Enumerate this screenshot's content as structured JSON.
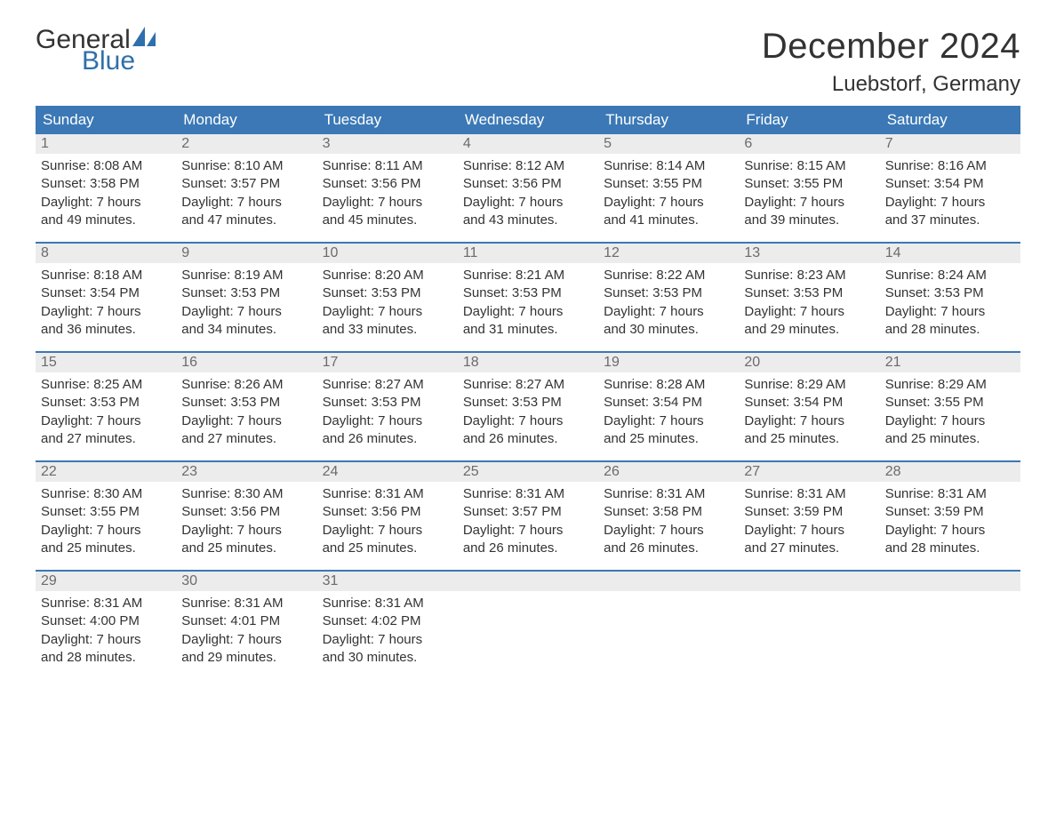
{
  "brand": {
    "part1": "General",
    "part2": "Blue",
    "color1": "#333333",
    "color2": "#2f6fab"
  },
  "title": "December 2024",
  "location": "Luebstorf, Germany",
  "colors": {
    "header_bg": "#3b78b5",
    "header_text": "#ffffff",
    "daynum_bg": "#ececec",
    "daynum_text": "#6b6b6b",
    "body_text": "#333333",
    "week_border": "#3b78b5",
    "page_bg": "#ffffff"
  },
  "fonts": {
    "title_size": 40,
    "location_size": 24,
    "weekday_size": 17,
    "cell_size": 15
  },
  "weekdays": [
    "Sunday",
    "Monday",
    "Tuesday",
    "Wednesday",
    "Thursday",
    "Friday",
    "Saturday"
  ],
  "labels": {
    "sunrise": "Sunrise:",
    "sunset": "Sunset:",
    "daylight_prefix": "Daylight:",
    "hours_word": "hours",
    "and_word": "and",
    "minutes_word": "minutes."
  },
  "weeks": [
    [
      {
        "n": "1",
        "sunrise": "8:08 AM",
        "sunset": "3:58 PM",
        "dh": "7",
        "dm": "49"
      },
      {
        "n": "2",
        "sunrise": "8:10 AM",
        "sunset": "3:57 PM",
        "dh": "7",
        "dm": "47"
      },
      {
        "n": "3",
        "sunrise": "8:11 AM",
        "sunset": "3:56 PM",
        "dh": "7",
        "dm": "45"
      },
      {
        "n": "4",
        "sunrise": "8:12 AM",
        "sunset": "3:56 PM",
        "dh": "7",
        "dm": "43"
      },
      {
        "n": "5",
        "sunrise": "8:14 AM",
        "sunset": "3:55 PM",
        "dh": "7",
        "dm": "41"
      },
      {
        "n": "6",
        "sunrise": "8:15 AM",
        "sunset": "3:55 PM",
        "dh": "7",
        "dm": "39"
      },
      {
        "n": "7",
        "sunrise": "8:16 AM",
        "sunset": "3:54 PM",
        "dh": "7",
        "dm": "37"
      }
    ],
    [
      {
        "n": "8",
        "sunrise": "8:18 AM",
        "sunset": "3:54 PM",
        "dh": "7",
        "dm": "36"
      },
      {
        "n": "9",
        "sunrise": "8:19 AM",
        "sunset": "3:53 PM",
        "dh": "7",
        "dm": "34"
      },
      {
        "n": "10",
        "sunrise": "8:20 AM",
        "sunset": "3:53 PM",
        "dh": "7",
        "dm": "33"
      },
      {
        "n": "11",
        "sunrise": "8:21 AM",
        "sunset": "3:53 PM",
        "dh": "7",
        "dm": "31"
      },
      {
        "n": "12",
        "sunrise": "8:22 AM",
        "sunset": "3:53 PM",
        "dh": "7",
        "dm": "30"
      },
      {
        "n": "13",
        "sunrise": "8:23 AM",
        "sunset": "3:53 PM",
        "dh": "7",
        "dm": "29"
      },
      {
        "n": "14",
        "sunrise": "8:24 AM",
        "sunset": "3:53 PM",
        "dh": "7",
        "dm": "28"
      }
    ],
    [
      {
        "n": "15",
        "sunrise": "8:25 AM",
        "sunset": "3:53 PM",
        "dh": "7",
        "dm": "27"
      },
      {
        "n": "16",
        "sunrise": "8:26 AM",
        "sunset": "3:53 PM",
        "dh": "7",
        "dm": "27"
      },
      {
        "n": "17",
        "sunrise": "8:27 AM",
        "sunset": "3:53 PM",
        "dh": "7",
        "dm": "26"
      },
      {
        "n": "18",
        "sunrise": "8:27 AM",
        "sunset": "3:53 PM",
        "dh": "7",
        "dm": "26"
      },
      {
        "n": "19",
        "sunrise": "8:28 AM",
        "sunset": "3:54 PM",
        "dh": "7",
        "dm": "25"
      },
      {
        "n": "20",
        "sunrise": "8:29 AM",
        "sunset": "3:54 PM",
        "dh": "7",
        "dm": "25"
      },
      {
        "n": "21",
        "sunrise": "8:29 AM",
        "sunset": "3:55 PM",
        "dh": "7",
        "dm": "25"
      }
    ],
    [
      {
        "n": "22",
        "sunrise": "8:30 AM",
        "sunset": "3:55 PM",
        "dh": "7",
        "dm": "25"
      },
      {
        "n": "23",
        "sunrise": "8:30 AM",
        "sunset": "3:56 PM",
        "dh": "7",
        "dm": "25"
      },
      {
        "n": "24",
        "sunrise": "8:31 AM",
        "sunset": "3:56 PM",
        "dh": "7",
        "dm": "25"
      },
      {
        "n": "25",
        "sunrise": "8:31 AM",
        "sunset": "3:57 PM",
        "dh": "7",
        "dm": "26"
      },
      {
        "n": "26",
        "sunrise": "8:31 AM",
        "sunset": "3:58 PM",
        "dh": "7",
        "dm": "26"
      },
      {
        "n": "27",
        "sunrise": "8:31 AM",
        "sunset": "3:59 PM",
        "dh": "7",
        "dm": "27"
      },
      {
        "n": "28",
        "sunrise": "8:31 AM",
        "sunset": "3:59 PM",
        "dh": "7",
        "dm": "28"
      }
    ],
    [
      {
        "n": "29",
        "sunrise": "8:31 AM",
        "sunset": "4:00 PM",
        "dh": "7",
        "dm": "28"
      },
      {
        "n": "30",
        "sunrise": "8:31 AM",
        "sunset": "4:01 PM",
        "dh": "7",
        "dm": "29"
      },
      {
        "n": "31",
        "sunrise": "8:31 AM",
        "sunset": "4:02 PM",
        "dh": "7",
        "dm": "30"
      },
      null,
      null,
      null,
      null
    ]
  ]
}
